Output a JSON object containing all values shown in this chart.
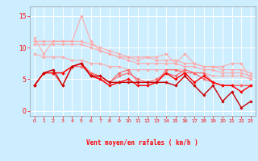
{
  "title": "",
  "xlabel": "Vent moyen/en rafales ( km/h )",
  "background_color": "#cceeff",
  "grid_color": "#aaddcc",
  "text_color": "#ff0000",
  "xlim": [
    -0.5,
    23.5
  ],
  "ylim": [
    -0.8,
    16.5
  ],
  "yticks": [
    0,
    5,
    10,
    15
  ],
  "xticks": [
    0,
    1,
    2,
    3,
    4,
    5,
    6,
    7,
    8,
    9,
    10,
    11,
    12,
    13,
    14,
    15,
    16,
    17,
    18,
    19,
    20,
    21,
    22,
    23
  ],
  "lines": [
    {
      "x": [
        0,
        1,
        2,
        3,
        4,
        5,
        6,
        7,
        8,
        9,
        10,
        11,
        12,
        13,
        14,
        15,
        16,
        17,
        18,
        19,
        20,
        21,
        22,
        23
      ],
      "y": [
        11.5,
        9.0,
        11.0,
        11.0,
        11.0,
        15.0,
        11.0,
        9.5,
        9.0,
        8.5,
        8.5,
        8.0,
        8.5,
        8.5,
        9.0,
        7.5,
        9.0,
        7.5,
        7.0,
        7.0,
        7.0,
        7.5,
        7.5,
        5.0
      ],
      "color": "#ffaaaa",
      "lw": 0.8,
      "marker": "D",
      "ms": 1.8
    },
    {
      "x": [
        0,
        1,
        2,
        3,
        4,
        5,
        6,
        7,
        8,
        9,
        10,
        11,
        12,
        13,
        14,
        15,
        16,
        17,
        18,
        19,
        20,
        21,
        22,
        23
      ],
      "y": [
        11.0,
        11.0,
        11.0,
        11.0,
        11.0,
        11.0,
        10.5,
        10.0,
        9.5,
        9.0,
        8.5,
        8.5,
        8.5,
        8.0,
        8.0,
        8.0,
        7.5,
        7.5,
        7.0,
        7.0,
        6.5,
        6.5,
        6.5,
        6.0
      ],
      "color": "#ffaaaa",
      "lw": 0.8,
      "marker": "D",
      "ms": 1.8
    },
    {
      "x": [
        0,
        1,
        2,
        3,
        4,
        5,
        6,
        7,
        8,
        9,
        10,
        11,
        12,
        13,
        14,
        15,
        16,
        17,
        18,
        19,
        20,
        21,
        22,
        23
      ],
      "y": [
        10.5,
        10.5,
        10.5,
        10.5,
        10.5,
        10.5,
        10.0,
        9.5,
        9.0,
        8.5,
        8.0,
        7.5,
        7.5,
        7.5,
        7.5,
        7.5,
        7.0,
        7.0,
        6.5,
        6.5,
        6.0,
        6.0,
        6.0,
        5.5
      ],
      "color": "#ffaaaa",
      "lw": 0.8,
      "marker": "D",
      "ms": 1.8
    },
    {
      "x": [
        0,
        1,
        2,
        3,
        4,
        5,
        6,
        7,
        8,
        9,
        10,
        11,
        12,
        13,
        14,
        15,
        16,
        17,
        18,
        19,
        20,
        21,
        22,
        23
      ],
      "y": [
        9.0,
        8.5,
        8.5,
        8.5,
        8.0,
        8.0,
        7.5,
        7.5,
        7.0,
        7.0,
        6.5,
        6.5,
        6.5,
        6.5,
        6.5,
        6.5,
        6.5,
        6.0,
        6.0,
        5.5,
        5.5,
        5.5,
        5.5,
        5.0
      ],
      "color": "#ffaaaa",
      "lw": 0.8,
      "marker": "D",
      "ms": 1.8
    },
    {
      "x": [
        0,
        1,
        2,
        3,
        4,
        5,
        6,
        7,
        8,
        9,
        10,
        11,
        12,
        13,
        14,
        15,
        16,
        17,
        18,
        19,
        20,
        21,
        22,
        23
      ],
      "y": [
        4.0,
        6.0,
        6.0,
        4.0,
        7.0,
        7.0,
        6.0,
        5.0,
        4.5,
        6.0,
        6.5,
        4.5,
        4.5,
        4.5,
        6.5,
        6.5,
        6.0,
        6.0,
        6.0,
        4.5,
        4.0,
        4.0,
        4.0,
        4.0
      ],
      "color": "#ff6666",
      "lw": 0.8,
      "marker": "D",
      "ms": 1.8
    },
    {
      "x": [
        0,
        1,
        2,
        3,
        4,
        5,
        6,
        7,
        8,
        9,
        10,
        11,
        12,
        13,
        14,
        15,
        16,
        17,
        18,
        19,
        20,
        21,
        22,
        23
      ],
      "y": [
        4.0,
        6.0,
        6.0,
        6.0,
        7.0,
        7.5,
        6.0,
        5.5,
        4.5,
        5.5,
        6.0,
        5.0,
        4.5,
        5.0,
        6.0,
        5.5,
        6.5,
        6.0,
        5.0,
        4.5,
        4.0,
        4.0,
        4.0,
        4.0
      ],
      "color": "#ff6666",
      "lw": 0.8,
      "marker": "D",
      "ms": 1.8
    },
    {
      "x": [
        0,
        1,
        2,
        3,
        4,
        5,
        6,
        7,
        8,
        9,
        10,
        11,
        12,
        13,
        14,
        15,
        16,
        17,
        18,
        19,
        20,
        21,
        22,
        23
      ],
      "y": [
        4.0,
        6.0,
        6.0,
        6.0,
        7.0,
        7.5,
        5.5,
        5.0,
        4.0,
        4.5,
        5.0,
        4.0,
        4.0,
        4.5,
        6.0,
        5.0,
        6.0,
        4.5,
        5.5,
        4.5,
        4.0,
        4.0,
        3.0,
        4.0
      ],
      "color": "#ff0000",
      "lw": 1.0,
      "marker": "D",
      "ms": 1.8
    },
    {
      "x": [
        0,
        1,
        2,
        3,
        4,
        5,
        6,
        7,
        8,
        9,
        10,
        11,
        12,
        13,
        14,
        15,
        16,
        17,
        18,
        19,
        20,
        21,
        22,
        23
      ],
      "y": [
        4.0,
        6.0,
        6.5,
        4.0,
        7.0,
        7.5,
        5.5,
        5.5,
        4.5,
        4.5,
        4.5,
        4.5,
        4.5,
        4.5,
        4.5,
        4.0,
        5.5,
        4.0,
        2.5,
        4.0,
        1.5,
        3.0,
        0.5,
        1.5
      ],
      "color": "#cc0000",
      "lw": 1.0,
      "marker": "D",
      "ms": 1.8
    }
  ]
}
